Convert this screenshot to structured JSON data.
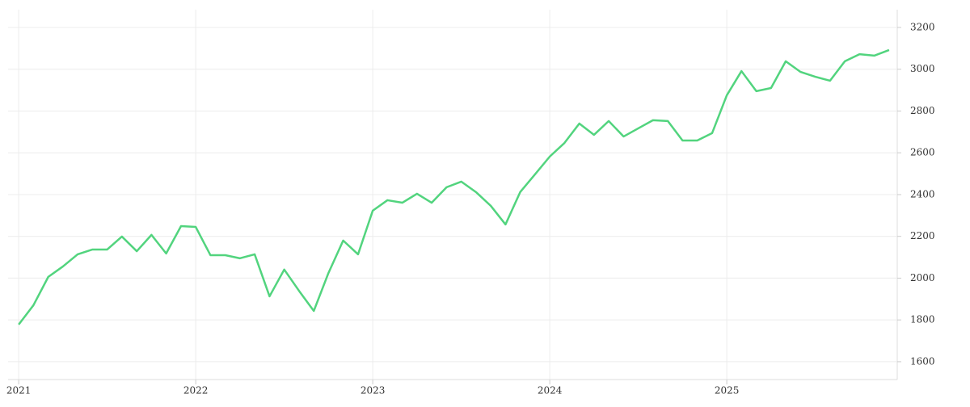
{
  "chart_data": {
    "type": "line",
    "x": [
      2021,
      2021.083,
      2021.167,
      2021.25,
      2021.333,
      2021.417,
      2021.5,
      2021.583,
      2021.667,
      2021.75,
      2021.833,
      2021.917,
      2022,
      2022.083,
      2022.167,
      2022.25,
      2022.333,
      2022.417,
      2022.5,
      2022.583,
      2022.667,
      2022.75,
      2022.833,
      2022.917,
      2023,
      2023.083,
      2023.167,
      2023.25,
      2023.333,
      2023.417,
      2023.5,
      2023.583,
      2023.667,
      2023.75,
      2023.833,
      2023.917,
      2024,
      2024.083,
      2024.167,
      2024.25,
      2024.333,
      2024.417,
      2024.5,
      2024.583,
      2024.667,
      2024.75,
      2024.833,
      2024.917,
      2025,
      2025.083,
      2025.167,
      2025.25,
      2025.333,
      2025.417,
      2025.5,
      2025.583,
      2025.667,
      2025.75,
      2025.833,
      2025.917
    ],
    "series": [
      {
        "color": "#52d47e",
        "values": [
          1778,
          1870,
          2006,
          2056,
          2114,
          2137,
          2137,
          2199,
          2129,
          2207,
          2118,
          2249,
          2245,
          2110,
          2110,
          2095,
          2114,
          1913,
          2041,
          1940,
          1843,
          2025,
          2180,
          2114,
          2323,
          2373,
          2361,
          2404,
          2361,
          2435,
          2462,
          2412,
          2346,
          2257,
          2412,
          2497,
          2582,
          2647,
          2740,
          2686,
          2752,
          2678,
          2717,
          2756,
          2752,
          2659,
          2659,
          2694,
          2875,
          2991,
          2895,
          2910,
          3038,
          2987,
          2964,
          2945,
          3038,
          3072,
          3065,
          3092
        ]
      }
    ],
    "xlim": [
      2020.94,
      2025.963
    ],
    "xticks": [
      2021,
      2022,
      2023,
      2024,
      2025
    ],
    "ylim": [
      1561,
      3285
    ],
    "yticks": [
      1600,
      1800,
      2000,
      2200,
      2400,
      2600,
      2800,
      3000,
      3200
    ],
    "grid": true
  }
}
